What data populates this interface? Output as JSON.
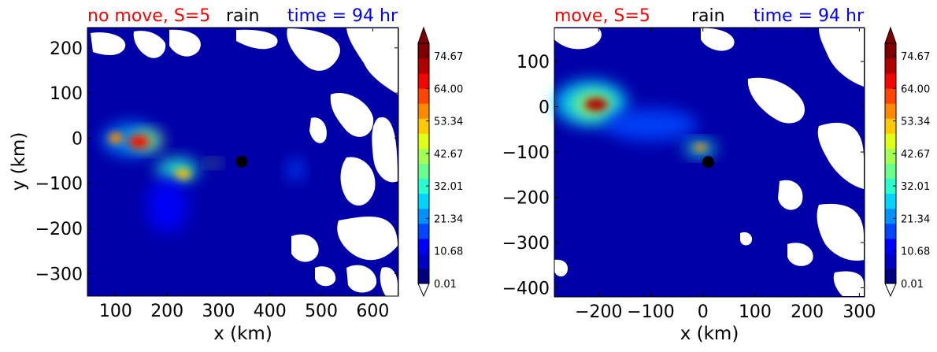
{
  "figure": {
    "variable_label": "rain",
    "cmap_colors": [
      "#00007f",
      "#0000c4",
      "#0000ff",
      "#0046ff",
      "#0090ff",
      "#00d4ff",
      "#29ffce",
      "#6aff8d",
      "#a4ff53",
      "#dfff18",
      "#ffcb00",
      "#ff8a00",
      "#ff4600",
      "#f10700",
      "#b20000",
      "#7f0000"
    ]
  },
  "chart_data": [
    {
      "type": "heatmap",
      "title_left": "no move, S=5",
      "title_center": "rain",
      "title_right": "time = 94 hr",
      "title_left_color": "#ff0000",
      "title_right_color": "#0000ff",
      "xlabel": "x (km)",
      "ylabel": "y (km)",
      "xlim": [
        45,
        650
      ],
      "ylim": [
        -350,
        245
      ],
      "xticks": [
        100,
        200,
        300,
        400,
        500,
        600
      ],
      "yticks": [
        200,
        100,
        0,
        -100,
        -200,
        -300
      ],
      "colorbar": {
        "ticks": [
          "74.67",
          "64.00",
          "53.34",
          "42.67",
          "32.01",
          "21.34",
          "10.68",
          "0.01"
        ],
        "extend": "both"
      },
      "marker": {
        "x": 345,
        "y": -52
      },
      "blobs": [
        {
          "x": 130,
          "y": -3,
          "rx": 55,
          "ry": 35,
          "v": 0.28
        },
        {
          "x": 160,
          "y": -5,
          "rx": 30,
          "ry": 20,
          "v": 0.55
        },
        {
          "x": 145,
          "y": -8,
          "rx": 20,
          "ry": 14,
          "v": 0.85
        },
        {
          "x": 100,
          "y": 0,
          "rx": 14,
          "ry": 12,
          "v": 0.7
        },
        {
          "x": 220,
          "y": -70,
          "rx": 40,
          "ry": 25,
          "v": 0.4
        },
        {
          "x": 230,
          "y": -80,
          "rx": 16,
          "ry": 12,
          "v": 0.65
        },
        {
          "x": 290,
          "y": -55,
          "rx": 12,
          "ry": 8,
          "v": 0.55
        },
        {
          "x": 200,
          "y": -150,
          "rx": 40,
          "ry": 60,
          "v": 0.15
        },
        {
          "x": 450,
          "y": -70,
          "rx": 15,
          "ry": 25,
          "v": 0.22
        }
      ]
    },
    {
      "type": "heatmap",
      "title_left": "move, S=5",
      "title_center": "rain",
      "title_right": "time = 94 hr",
      "title_left_color": "#ff0000",
      "title_right_color": "#0000ff",
      "xlabel": "x (km)",
      "ylabel": "",
      "xlim": [
        -285,
        310
      ],
      "ylim": [
        -420,
        175
      ],
      "xticks": [
        -200,
        -100,
        0,
        100,
        200,
        300
      ],
      "yticks": [
        100,
        0,
        -100,
        -200,
        -300,
        -400
      ],
      "colorbar": {
        "ticks": [
          "74.67",
          "64.00",
          "53.34",
          "42.67",
          "32.01",
          "21.34",
          "10.68",
          "0.01"
        ],
        "extend": "both"
      },
      "marker": {
        "x": 10,
        "y": -122
      },
      "blobs": [
        {
          "x": -215,
          "y": 8,
          "rx": 70,
          "ry": 50,
          "v": 0.3
        },
        {
          "x": -210,
          "y": 5,
          "rx": 40,
          "ry": 28,
          "v": 0.55
        },
        {
          "x": -205,
          "y": 5,
          "rx": 22,
          "ry": 14,
          "v": 0.9
        },
        {
          "x": -100,
          "y": -40,
          "rx": 90,
          "ry": 35,
          "v": 0.18
        },
        {
          "x": -5,
          "y": -92,
          "rx": 30,
          "ry": 16,
          "v": 0.42
        },
        {
          "x": -5,
          "y": -90,
          "rx": 12,
          "ry": 8,
          "v": 0.7
        }
      ]
    }
  ]
}
